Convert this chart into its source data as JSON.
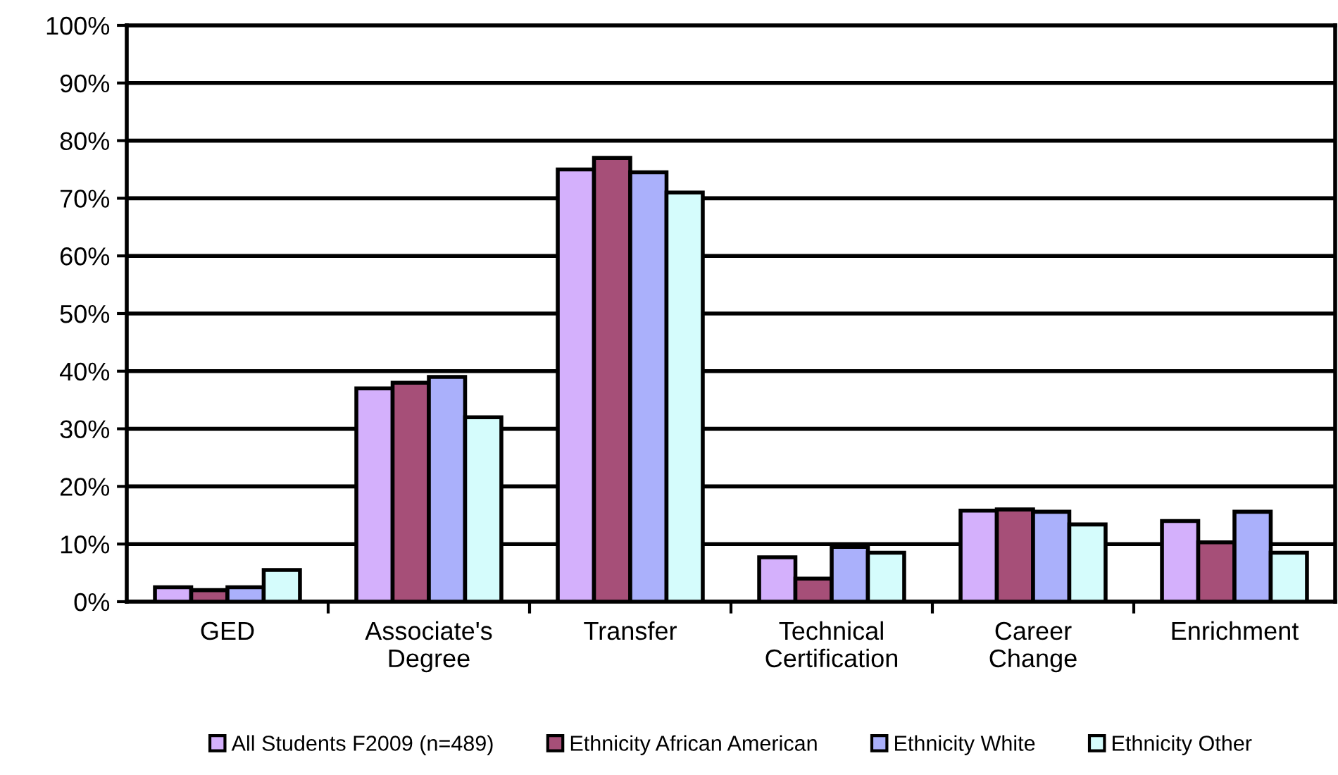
{
  "chart_data": {
    "type": "bar",
    "categories": [
      "GED",
      "Associate's\nDegree",
      "Transfer",
      "Technical\nCertification",
      "Career\nChange",
      "Enrichment"
    ],
    "series": [
      {
        "name": "All Students F2009 (n=489)",
        "color": "#d4b0fc",
        "values": [
          2.5,
          37,
          75,
          7.7,
          15.8,
          14
        ]
      },
      {
        "name": "Ethnicity African American",
        "color": "#a64f78",
        "values": [
          2,
          38,
          77,
          4,
          16,
          10.3
        ]
      },
      {
        "name": "Ethnicity White",
        "color": "#aab0fb",
        "values": [
          2.5,
          39,
          74.5,
          9.5,
          15.6,
          15.6
        ]
      },
      {
        "name": "Ethnicity Other",
        "color": "#d5fcfc",
        "values": [
          5.5,
          32,
          71,
          8.5,
          13.4,
          8.5
        ]
      }
    ],
    "ylim": [
      0,
      100
    ],
    "yticks": [
      {
        "value": 0,
        "label": "0%"
      },
      {
        "value": 10,
        "label": "10%"
      },
      {
        "value": 20,
        "label": "20%"
      },
      {
        "value": 30,
        "label": "30%"
      },
      {
        "value": 40,
        "label": "40%"
      },
      {
        "value": 50,
        "label": "50%"
      },
      {
        "value": 60,
        "label": "60%"
      },
      {
        "value": 70,
        "label": "70%"
      },
      {
        "value": 80,
        "label": "80%"
      },
      {
        "value": 90,
        "label": "90%"
      },
      {
        "value": 100,
        "label": "100%"
      }
    ],
    "grid": "y",
    "legend": "bottom"
  }
}
